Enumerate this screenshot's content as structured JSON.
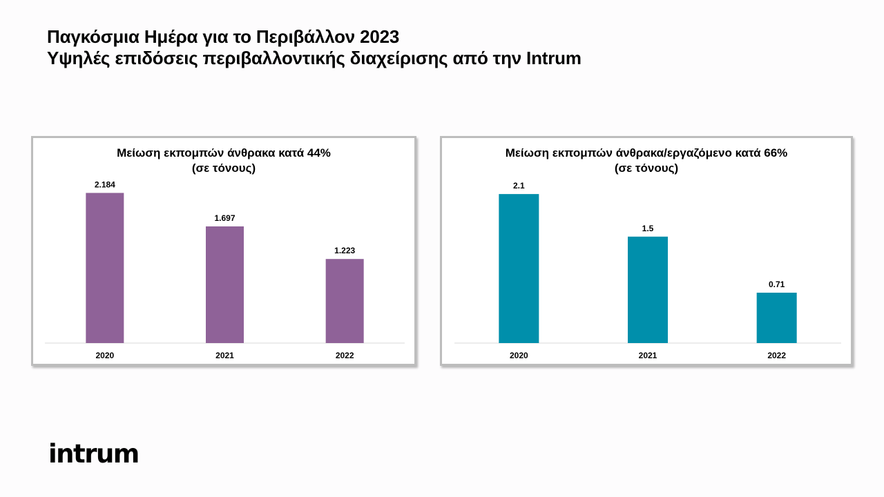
{
  "slide": {
    "title_line1": "Παγκόσμια Ημέρα για το Περιβάλλον 2023",
    "title_line2": "Υψηλές επιδόσεις περιβαλλοντικής διαχείρισης από την Intrum",
    "logo_text": "intrum"
  },
  "chart_data": [
    {
      "type": "bar",
      "title": "Μείωση εκπομπών άνθρακα κατά 44%",
      "subtitle": "(σε τόνους)",
      "categories": [
        "2020",
        "2021",
        "2022"
      ],
      "values": [
        2184,
        1697,
        1223
      ],
      "value_labels": [
        "2.184",
        "1.697",
        "1.223"
      ],
      "ylim": [
        0,
        2500
      ],
      "color": "#8f6298",
      "grid": false,
      "legend": "none"
    },
    {
      "type": "bar",
      "title": "Μείωση εκπομπών άνθρακα/εργαζόμενο κατά 66%",
      "subtitle": "(σε τόνους)",
      "categories": [
        "2020",
        "2021",
        "2022"
      ],
      "values": [
        2.1,
        1.5,
        0.71
      ],
      "value_labels": [
        "2.1",
        "1.5",
        "0.71"
      ],
      "ylim": [
        0,
        2.5
      ],
      "color": "#008fab",
      "grid": false,
      "legend": "none"
    }
  ]
}
